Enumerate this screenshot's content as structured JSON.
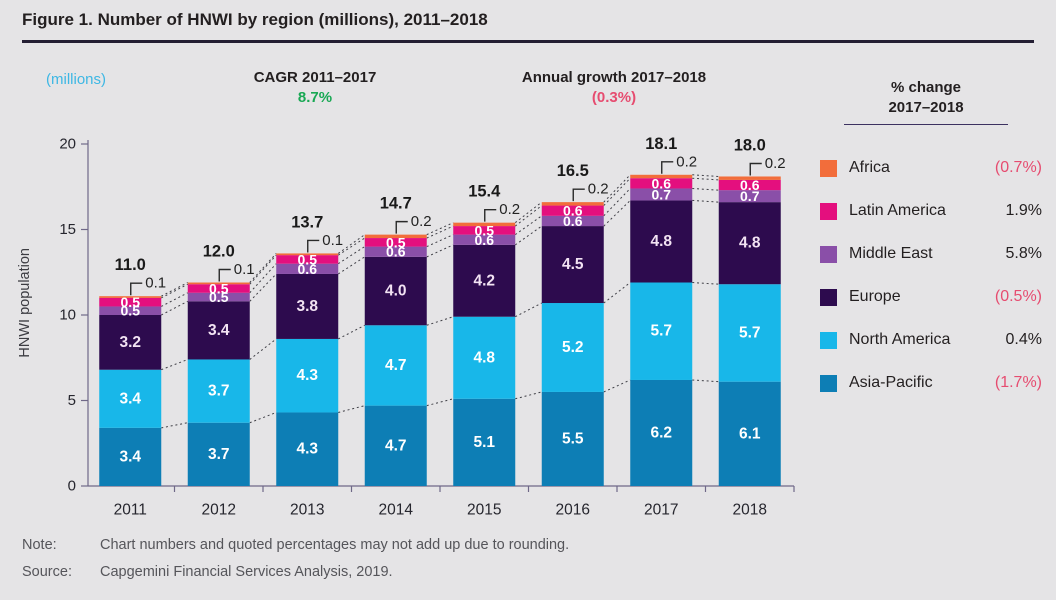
{
  "title": "Figure 1. Number of HNWI by region (millions), 2011–2018",
  "header": {
    "unit_label": "(millions)",
    "cagr_label": "CAGR 2011–2017",
    "cagr_value": "8.7%",
    "growth_label": "Annual growth 2017–2018",
    "growth_value": "(0.3%)"
  },
  "colors": {
    "positive_green": "#19a854",
    "negative_pink": "#e64c70",
    "unit_cyan": "#3db7e4",
    "africa_orange": "#f26d3b",
    "latin_america_magenta": "#e40f7e",
    "middle_east_purple": "#8a4fa8",
    "europe_dark_purple": "#2d0b4e",
    "north_america_cyan": "#18b7e9",
    "asia_pacific_blue": "#0d7eb5"
  },
  "legend": {
    "header_line1": "% change",
    "header_line2": "2017–2018",
    "items": [
      {
        "label": "Africa",
        "change": "(0.7%)",
        "negative": true,
        "color": "#f26d3b"
      },
      {
        "label": "Latin America",
        "change": "1.9%",
        "negative": false,
        "color": "#e40f7e"
      },
      {
        "label": "Middle East",
        "change": "5.8%",
        "negative": false,
        "color": "#8a4fa8"
      },
      {
        "label": "Europe",
        "change": "(0.5%)",
        "negative": true,
        "color": "#2d0b4e"
      },
      {
        "label": "North America",
        "change": "0.4%",
        "negative": false,
        "color": "#18b7e9"
      },
      {
        "label": "Asia-Pacific",
        "change": "(1.7%)",
        "negative": true,
        "color": "#0d7eb5"
      }
    ]
  },
  "chart_data": {
    "type": "bar",
    "stacked": true,
    "title": "Number of HNWI by region (millions), 2011–2018",
    "ylabel": "HNWI population",
    "ylim": [
      0,
      20
    ],
    "yticks": [
      0,
      5,
      10,
      15,
      20
    ],
    "grid": false,
    "legend_position": "right",
    "categories": [
      "2011",
      "2012",
      "2013",
      "2014",
      "2015",
      "2016",
      "2017",
      "2018"
    ],
    "series": [
      {
        "name": "Asia-Pacific",
        "color": "#0d7eb5",
        "label_color": "#ffffff",
        "values": [
          3.4,
          3.7,
          4.3,
          4.7,
          5.1,
          5.5,
          6.2,
          6.1
        ]
      },
      {
        "name": "North America",
        "color": "#18b7e9",
        "label_color": "#ffffff",
        "values": [
          3.4,
          3.7,
          4.3,
          4.7,
          4.8,
          5.2,
          5.7,
          5.7
        ]
      },
      {
        "name": "Europe",
        "color": "#2d0b4e",
        "label_color": "#f2e3f3",
        "values": [
          3.2,
          3.4,
          3.8,
          4.0,
          4.2,
          4.5,
          4.8,
          4.8
        ]
      },
      {
        "name": "Middle East",
        "color": "#8a4fa8",
        "label_color": "#ffffff",
        "values": [
          0.5,
          0.5,
          0.6,
          0.6,
          0.6,
          0.6,
          0.7,
          0.7
        ]
      },
      {
        "name": "Latin America",
        "color": "#e40f7e",
        "label_color": "#ffffff",
        "values": [
          0.5,
          0.5,
          0.5,
          0.5,
          0.5,
          0.6,
          0.6,
          0.6
        ]
      },
      {
        "name": "Africa",
        "color": "#f26d3b",
        "label_color": null,
        "values": [
          0.1,
          0.1,
          0.1,
          0.2,
          0.2,
          0.2,
          0.2,
          0.2
        ]
      }
    ],
    "totals": [
      "11.0",
      "12.0",
      "13.7",
      "14.7",
      "15.4",
      "16.5",
      "18.1",
      "18.0"
    ],
    "africa_callouts": [
      "0.1",
      "0.1",
      "0.1",
      "0.2",
      "0.2",
      "0.2",
      "0.2",
      "0.2"
    ]
  },
  "footer": {
    "note_label": "Note:",
    "note_text": "Chart numbers and quoted percentages may not add up due to rounding.",
    "source_label": "Source:",
    "source_text": "Capgemini Financial Services Analysis, 2019."
  }
}
